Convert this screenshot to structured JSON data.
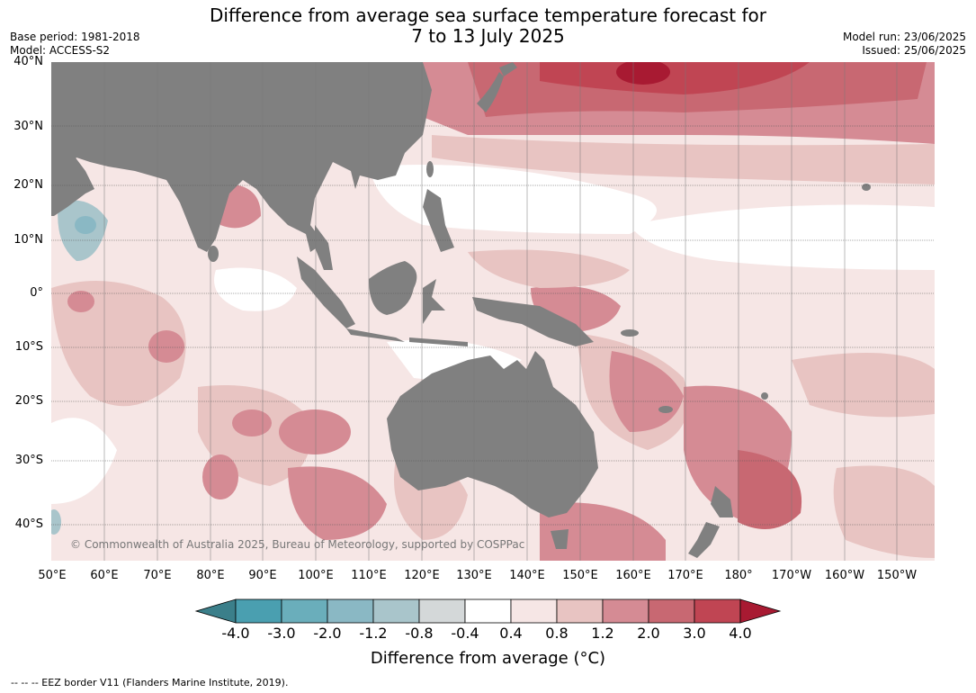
{
  "title_line1": "Difference from average sea surface temperature forecast for",
  "title_line2": "7 to 13 July 2025",
  "base_period": "Base period: 1981-2018",
  "model": "Model: ACCESS-S2",
  "model_run": "Model run: 23/06/2025",
  "issued": "Issued: 25/06/2025",
  "lat_labels": [
    "40°N",
    "30°N",
    "20°N",
    "10°N",
    "0°",
    "10°S",
    "20°S",
    "30°S",
    "40°S"
  ],
  "lon_labels": [
    "50°E",
    "60°E",
    "70°E",
    "80°E",
    "90°E",
    "100°E",
    "110°E",
    "120°E",
    "130°E",
    "140°E",
    "150°E",
    "160°E",
    "170°E",
    "180°",
    "170°W",
    "160°W",
    "150°W"
  ],
  "copyright": "© Commonwealth of Australia 2025, Bureau of Meteorology, supported by COSPPac",
  "colorbar": {
    "ticks": [
      "-4.0",
      "-3.0",
      "-2.0",
      "-1.2",
      "-0.8",
      "-0.4",
      "0.4",
      "0.8",
      "1.2",
      "2.0",
      "3.0",
      "4.0"
    ],
    "colors": [
      "#3b7f8a",
      "#4a9fb0",
      "#6aaebb",
      "#8ab8c4",
      "#a9c5cb",
      "#d4d8d9",
      "#ffffff",
      "#f6e6e5",
      "#e8c4c2",
      "#d58b94",
      "#c86872",
      "#c04553",
      "#a81a32"
    ],
    "label": "Difference from average (°C)"
  },
  "eez_note": "--  --  -- EEZ border V11 (Flanders Marine Institute, 2019).",
  "map_colors": {
    "land": "#808080",
    "grid": "#555555"
  }
}
